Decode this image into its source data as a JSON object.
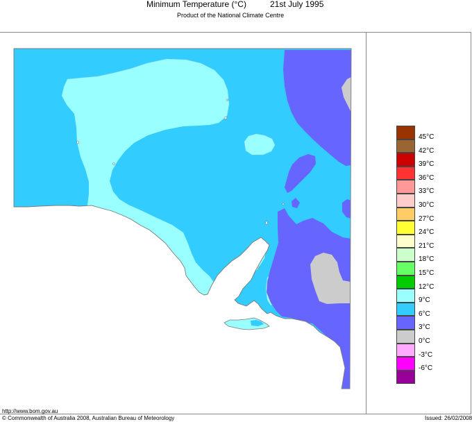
{
  "header": {
    "title": "Minimum Temperature (°C)",
    "date": "21st July 1995",
    "subtitle": "Product of the National Climate Centre"
  },
  "map": {
    "region": "South Australia",
    "colors": {
      "light_cyan_9C": "#99ffff",
      "mid_cyan_6C": "#33ccff",
      "blue_3C": "#6666ff",
      "grey_0C": "#cccccc",
      "background": "#ffffff",
      "outline": "#7a7a7a"
    }
  },
  "legend": {
    "items": [
      {
        "label": "45°C",
        "color": "#993300"
      },
      {
        "label": "42°C",
        "color": "#996633"
      },
      {
        "label": "39°C",
        "color": "#cc0000"
      },
      {
        "label": "36°C",
        "color": "#ff3333"
      },
      {
        "label": "33°C",
        "color": "#ff9999"
      },
      {
        "label": "30°C",
        "color": "#ffcccc"
      },
      {
        "label": "27°C",
        "color": "#ffcc66"
      },
      {
        "label": "24°C",
        "color": "#ffff33"
      },
      {
        "label": "21°C",
        "color": "#ffffcc"
      },
      {
        "label": "18°C",
        "color": "#ccffcc"
      },
      {
        "label": "15°C",
        "color": "#66ff66"
      },
      {
        "label": "12°C",
        "color": "#00cc00"
      },
      {
        "label": "9°C",
        "color": "#99ffff"
      },
      {
        "label": "6°C",
        "color": "#33ccff"
      },
      {
        "label": "3°C",
        "color": "#6666ff"
      },
      {
        "label": "0°C",
        "color": "#cccccc"
      },
      {
        "label": "-3°C",
        "color": "#ffaaff"
      },
      {
        "label": "-6°C",
        "color": "#ff00ff"
      },
      {
        "label": "",
        "color": "#990099"
      }
    ]
  },
  "footer": {
    "url": "http://www.bom.gov.au",
    "copyright": "© Commonwealth of Australia 2008, Australian Bureau of Meteorology",
    "issued": "Issued: 26/02/2008"
  }
}
